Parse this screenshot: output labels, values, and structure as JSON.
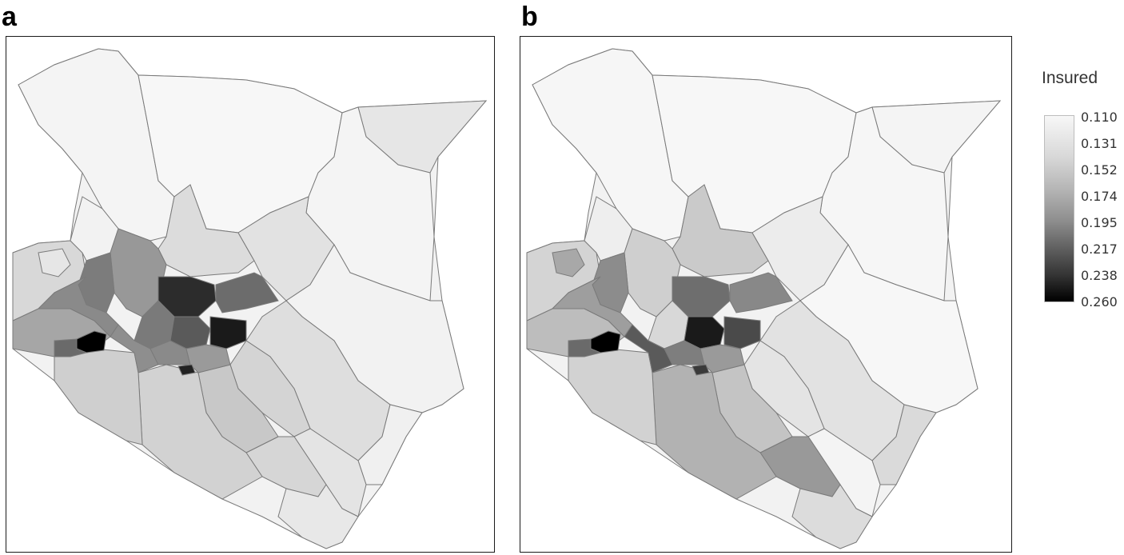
{
  "panels": [
    {
      "letter": "a"
    },
    {
      "letter": "b"
    }
  ],
  "legend": {
    "title": "Insured",
    "labels": [
      "0.110",
      "0.131",
      "0.152",
      "0.174",
      "0.195",
      "0.217",
      "0.238",
      "0.260"
    ],
    "colors": {
      "low": "#f7f7f7",
      "high": "#000000"
    }
  },
  "map_style": {
    "border_color": "#7a7a7a",
    "frame_color": "#1a1a1a"
  }
}
